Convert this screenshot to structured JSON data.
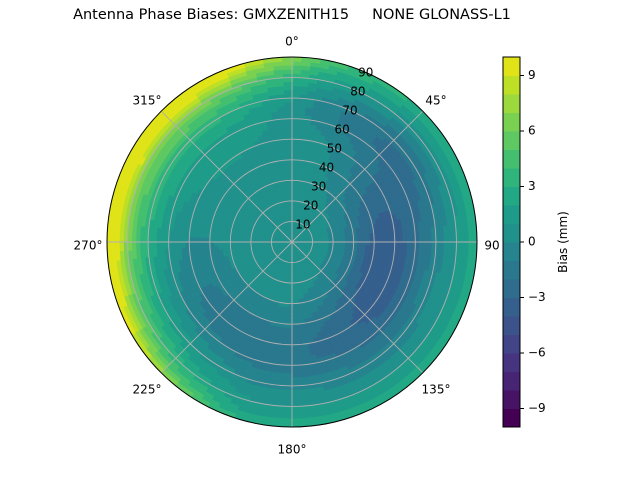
{
  "figure": {
    "title": "Antenna Phase Biases: GMXZENITH15     NONE GLONASS-L1"
  },
  "chart_data": {
    "type": "polar-contourf",
    "title": "Antenna Phase Biases: GMXZENITH15     NONE GLONASS-L1",
    "antenna": "GMXZENITH15",
    "radome": "NONE",
    "signal": "GLONASS-L1",
    "theta_direction": "clockwise",
    "theta_zero_location": "N",
    "theta_ticks": [
      "0°",
      "45°",
      "90",
      "135°",
      "180°",
      "225°",
      "270°",
      "315°"
    ],
    "r_ticks": [
      10,
      20,
      30,
      40,
      50,
      60,
      70,
      80,
      90
    ],
    "r_label_angle_deg": 22.5,
    "rlim": [
      0,
      90
    ],
    "grid": true,
    "colorbar": {
      "label": "Bias (mm)",
      "cmap": "viridis",
      "vmin": -10,
      "vmax": 10,
      "levels": 20,
      "ticks": [
        9,
        6,
        3,
        0,
        -3,
        -6,
        -9
      ],
      "tick_labels": [
        "9",
        "6",
        "3",
        "0",
        "−3",
        "−6",
        "−9"
      ],
      "position": "right"
    },
    "approx_field_description": [
      {
        "region": "center (r 0-30)",
        "bias_mm": 0.5
      },
      {
        "region": "east / 60-120° az, r 30-70",
        "bias_mm": -3.5
      },
      {
        "region": "northeast 30-60° az, r 50-80",
        "bias_mm": -2.5
      },
      {
        "region": "southwest 200-250° az, r 40-70",
        "bias_mm": -1.5
      },
      {
        "region": "south 160-200° az, r 70-90",
        "bias_mm": 1.5
      },
      {
        "region": "north 330-30° az, r 80-90",
        "bias_mm": 2.5
      },
      {
        "region": "west 250-320° az, r 80-90 (rim)",
        "bias_mm": 9.0
      },
      {
        "region": "northwest 300-330° az, r 70-90",
        "bias_mm": 6.0
      },
      {
        "region": "east rim 80-100° az, r 85-90",
        "bias_mm": 1.0
      }
    ]
  },
  "colors": {
    "grid": "#b0b0b0",
    "outline": "#000000",
    "viridis20": [
      "#440154",
      "#481769",
      "#472a7a",
      "#433d84",
      "#3d4e8a",
      "#355e8d",
      "#2e6d8e",
      "#297b8e",
      "#23898e",
      "#1f978b",
      "#21a585",
      "#2eb37c",
      "#46c06f",
      "#65cb5e",
      "#89d548",
      "#b0dd2f",
      "#d8e219",
      "#fde725",
      "#fde725",
      "#fde725"
    ]
  }
}
